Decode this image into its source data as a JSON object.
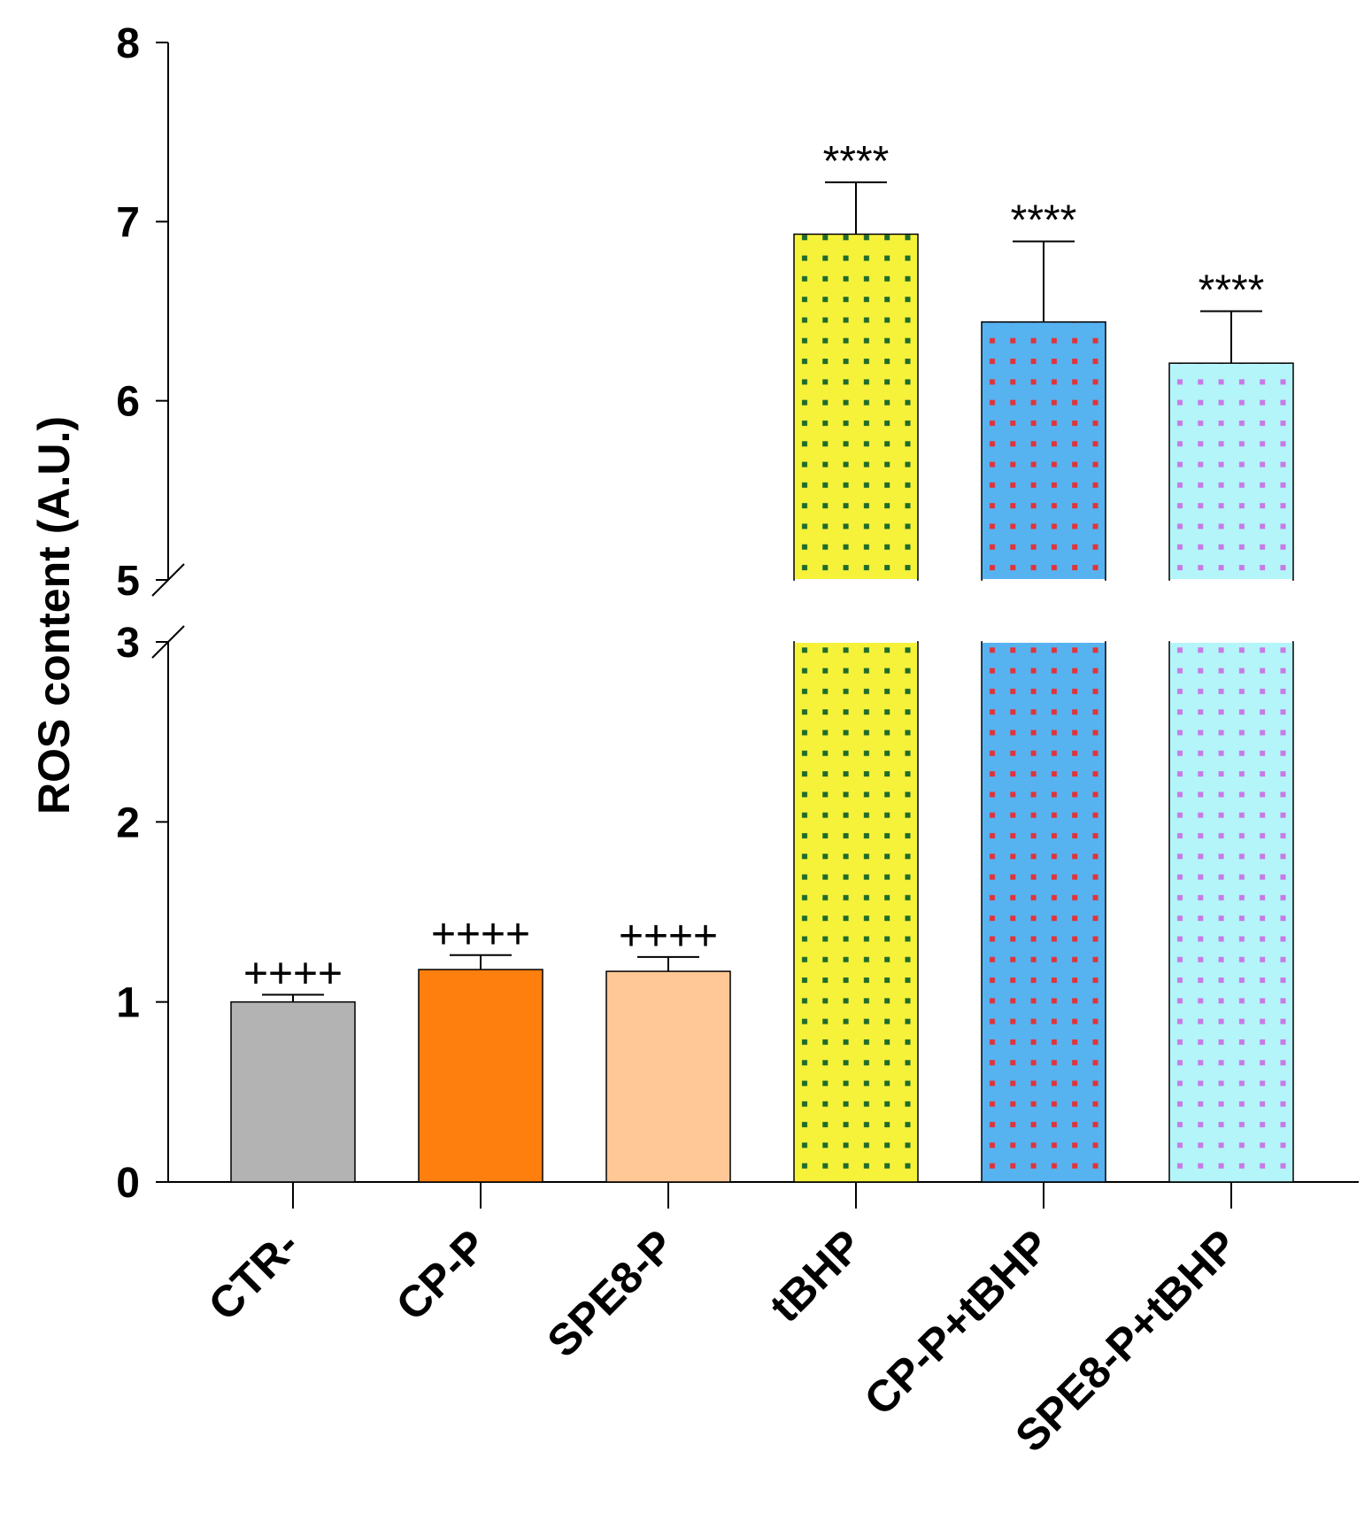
{
  "chart_data": {
    "type": "bar",
    "ylabel": "ROS content (A.U.)",
    "xlabel": "",
    "title": "",
    "ylim": [
      0,
      8
    ],
    "axis_break": [
      3,
      5
    ],
    "yticks": [
      "0",
      "1",
      "2",
      "3",
      "5",
      "6",
      "7",
      "8"
    ],
    "categories": [
      "CTR-",
      "CP-P",
      "SPE8-P",
      "tBHP",
      "CP-P+tBHP",
      "SPE8-P+tBHP"
    ],
    "values": [
      1.0,
      1.18,
      1.17,
      6.93,
      6.44,
      6.21
    ],
    "errors": [
      0.04,
      0.08,
      0.08,
      0.29,
      0.45,
      0.29
    ],
    "annotations": [
      "++++",
      "++++",
      "++++",
      "****",
      "****",
      "****"
    ],
    "colors": [
      "#b3b3b3",
      "#ff7f0e",
      "#ffc896",
      "#f6f23a",
      "#56b3f0",
      "#b4f5fa"
    ],
    "pattern_dot_colors": [
      null,
      null,
      null,
      "#1f6b2a",
      "#e0333a",
      "#c77ae6"
    ]
  }
}
